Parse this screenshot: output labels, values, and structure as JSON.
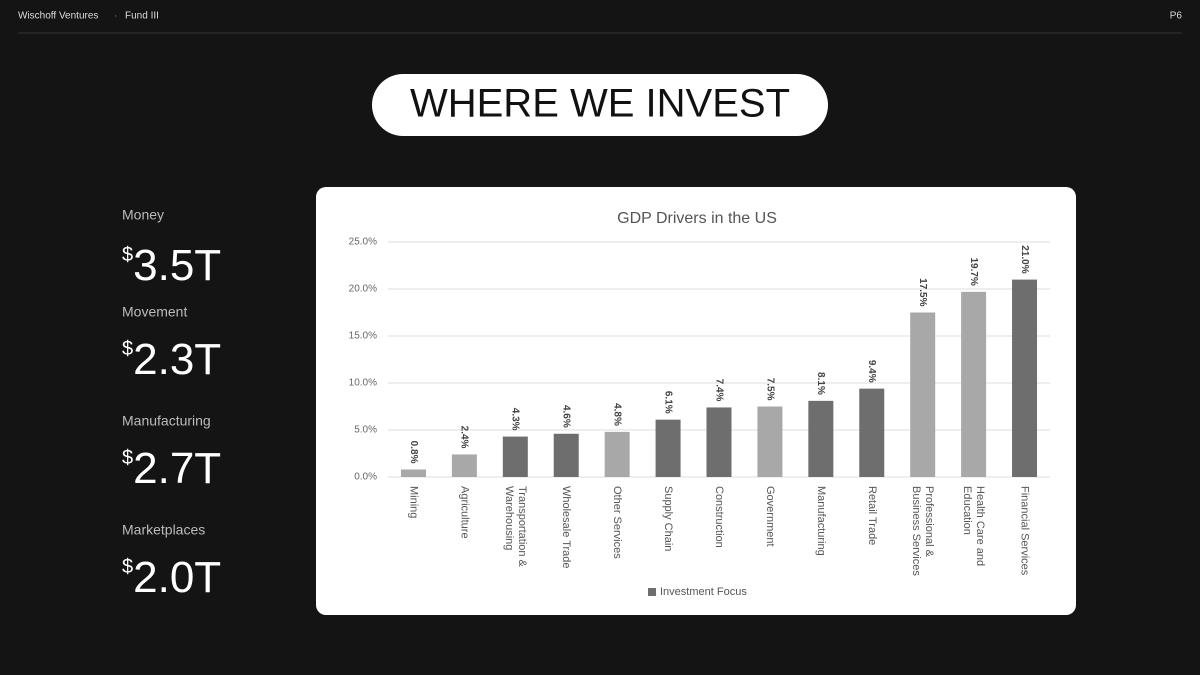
{
  "header": {
    "brand": "Wischoff Ventures",
    "separator": "·",
    "fund": "Fund III",
    "page": "P6"
  },
  "title": "WHERE WE INVEST",
  "stats": [
    {
      "label": "Money",
      "value": "$3.5T"
    },
    {
      "label": "Movement",
      "value": "$2.3T"
    },
    {
      "label": "Manufacturing",
      "value": "$2.7T"
    },
    {
      "label": "Marketplaces",
      "value": "$2.0T"
    }
  ],
  "chart_data": {
    "type": "bar",
    "title": "GDP Drivers in the US",
    "categories": [
      "Mining",
      "Agriculture",
      "Transportation & Warehousing",
      "Wholesale Trade",
      "Other Services",
      "Supply Chain",
      "Construction",
      "Government",
      "Manufacturing",
      "Retail Trade",
      "Professional & Business Services",
      "Health Care and Education",
      "Financial Services"
    ],
    "values": [
      0.8,
      2.4,
      4.3,
      4.6,
      4.8,
      6.1,
      7.4,
      7.5,
      8.1,
      9.4,
      17.5,
      19.7,
      21.0
    ],
    "value_labels": [
      "0.8%",
      "2.4%",
      "4.3%",
      "4.6%",
      "4.8%",
      "6.1%",
      "7.4%",
      "7.5%",
      "8.1%",
      "9.4%",
      "17.5%",
      "19.7%",
      "21.0%"
    ],
    "colors": [
      "#a8a8a8",
      "#a8a8a8",
      "#6e6e6e",
      "#6e6e6e",
      "#a8a8a8",
      "#6e6e6e",
      "#6e6e6e",
      "#a8a8a8",
      "#6e6e6e",
      "#6e6e6e",
      "#a8a8a8",
      "#a8a8a8",
      "#6e6e6e"
    ],
    "legend": {
      "name": "Investment Focus",
      "color": "#6e6e6e"
    },
    "ylim": [
      0,
      25
    ],
    "yticks": [
      {
        "value": 0,
        "label": "0.0%"
      },
      {
        "value": 5,
        "label": "5.0%"
      },
      {
        "value": 10,
        "label": "10.0%"
      },
      {
        "value": 15,
        "label": "15.0%"
      },
      {
        "value": 20,
        "label": "20.0%"
      },
      {
        "value": 25,
        "label": "25.0%"
      }
    ],
    "grid": true
  }
}
